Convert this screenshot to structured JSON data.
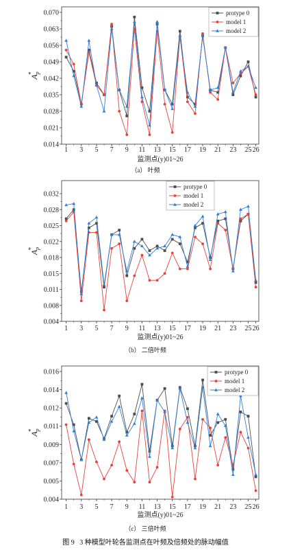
{
  "figure_caption": "图 9   3 种模型叶轮各监测点在叶频及倍频处的脉动幅值",
  "chart_data": [
    {
      "type": "line",
      "caption": "（a） 叶频",
      "xlabel": "监测点(y)01~26",
      "ylabel": {
        "base": "A",
        "sub": "p",
        "sup": "*"
      },
      "x": [
        1,
        2,
        3,
        4,
        5,
        6,
        7,
        8,
        9,
        10,
        11,
        12,
        13,
        14,
        15,
        16,
        17,
        18,
        19,
        20,
        21,
        22,
        23,
        24,
        25,
        26
      ],
      "xticks": [
        1,
        3,
        5,
        7,
        9,
        11,
        13,
        15,
        17,
        19,
        21,
        23,
        25,
        26
      ],
      "xlim": [
        0.4,
        26.4
      ],
      "ylim": [
        0.014,
        0.07
      ],
      "yticks": [
        "0.014",
        "0.021",
        "0.028",
        "0.035",
        "0.042",
        "0.049",
        "0.056",
        "0.063",
        "0.070"
      ],
      "grid": false,
      "legend": "top-right",
      "series": [
        {
          "name": "protype 0",
          "color": "#4d4d4d",
          "values": [
            0.051,
            0.045,
            0.031,
            0.054,
            0.04,
            0.035,
            0.064,
            0.037,
            0.026,
            0.068,
            0.038,
            0.028,
            0.065,
            0.037,
            0.031,
            0.062,
            0.034,
            0.031,
            0.06,
            0.037,
            0.036,
            0.055,
            0.035,
            0.043,
            0.049,
            0.034
          ]
        },
        {
          "name": "model 1",
          "color": "#e8413c",
          "values": [
            0.054,
            0.048,
            0.031,
            0.053,
            0.039,
            0.035,
            0.065,
            0.028,
            0.018,
            0.063,
            0.032,
            0.018,
            0.062,
            0.031,
            0.019,
            0.06,
            0.032,
            0.027,
            0.061,
            0.036,
            0.033,
            0.055,
            0.04,
            0.044,
            0.047,
            0.035
          ]
        },
        {
          "name": "model 2",
          "color": "#2f7fd8",
          "values": [
            0.058,
            0.043,
            0.03,
            0.058,
            0.039,
            0.028,
            0.063,
            0.037,
            0.03,
            0.066,
            0.034,
            0.022,
            0.066,
            0.037,
            0.029,
            0.06,
            0.036,
            0.03,
            0.06,
            0.037,
            0.038,
            0.055,
            0.036,
            0.045,
            0.047,
            0.038
          ]
        }
      ]
    },
    {
      "type": "line",
      "caption": "（b） 二倍叶频",
      "xlabel": "监测点(y)01~26",
      "ylabel": {
        "base": "A",
        "sub": "p",
        "sup": "*"
      },
      "x": [
        1,
        2,
        3,
        4,
        5,
        6,
        7,
        8,
        9,
        10,
        11,
        12,
        13,
        14,
        15,
        16,
        17,
        18,
        19,
        20,
        21,
        22,
        23,
        24,
        25,
        26
      ],
      "xticks": [
        1,
        3,
        5,
        7,
        9,
        11,
        13,
        15,
        17,
        19,
        21,
        23,
        25,
        26
      ],
      "xlim": [
        0.4,
        26.4
      ],
      "ylim": [
        0.004,
        0.032
      ],
      "yticks": [
        "0.004",
        "0.008",
        "0.011",
        "0.015",
        "0.018",
        "0.022",
        "0.025",
        "0.028",
        "0.032"
      ],
      "grid": false,
      "legend": "top-center",
      "series": [
        {
          "name": "protype 0",
          "color": "#4d4d4d",
          "values": [
            0.0265,
            0.0285,
            0.0105,
            0.0245,
            0.0255,
            0.0115,
            0.023,
            0.024,
            0.014,
            0.02,
            0.022,
            0.0195,
            0.0205,
            0.0195,
            0.022,
            0.021,
            0.017,
            0.0245,
            0.0255,
            0.018,
            0.026,
            0.0265,
            0.0155,
            0.026,
            0.0275,
            0.0125
          ]
        },
        {
          "name": "model 1",
          "color": "#e8413c",
          "values": [
            0.026,
            0.028,
            0.0085,
            0.0235,
            0.0235,
            0.0065,
            0.02,
            0.021,
            0.0085,
            0.014,
            0.0185,
            0.013,
            0.013,
            0.0145,
            0.019,
            0.0155,
            0.0155,
            0.0225,
            0.021,
            0.0155,
            0.0255,
            0.024,
            0.0155,
            0.0265,
            0.0275,
            0.0115
          ]
        },
        {
          "name": "model 2",
          "color": "#2f7fd8",
          "values": [
            0.0295,
            0.0298,
            0.01,
            0.0255,
            0.0268,
            0.012,
            0.023,
            0.023,
            0.015,
            0.0215,
            0.0205,
            0.0185,
            0.02,
            0.0205,
            0.023,
            0.0225,
            0.016,
            0.025,
            0.027,
            0.0175,
            0.0275,
            0.028,
            0.015,
            0.0285,
            0.0292,
            0.013
          ]
        }
      ]
    },
    {
      "type": "line",
      "caption": "（c） 三倍叶频",
      "xlabel": "监测点(y)01~26",
      "ylabel": {
        "base": "A",
        "sub": "p",
        "sup": "*"
      },
      "x": [
        1,
        2,
        3,
        4,
        5,
        6,
        7,
        8,
        9,
        10,
        11,
        12,
        13,
        14,
        15,
        16,
        17,
        18,
        19,
        20,
        21,
        22,
        23,
        24,
        25,
        26
      ],
      "xticks": [
        1,
        3,
        5,
        7,
        9,
        11,
        13,
        15,
        17,
        19,
        21,
        23,
        25,
        26
      ],
      "xlim": [
        0.4,
        26.4
      ],
      "ylim": [
        0.004,
        0.016
      ],
      "yticks": [
        "0.004",
        "0.005",
        "0.007",
        "0.009",
        "0.011",
        "0.012",
        "0.014",
        "0.016"
      ],
      "grid": false,
      "legend": "top-right",
      "series": [
        {
          "name": "protype 0",
          "color": "#4d4d4d",
          "values": [
            0.013,
            0.011,
            0.0077,
            0.0116,
            0.0113,
            0.0097,
            0.0118,
            0.0137,
            0.0103,
            0.012,
            0.0148,
            0.0085,
            0.0133,
            0.0144,
            0.009,
            0.0145,
            0.0125,
            0.009,
            0.0152,
            0.01,
            0.0112,
            0.0115,
            0.0068,
            0.0122,
            0.0118,
            0.0061
          ]
        },
        {
          "name": "model 1",
          "color": "#e8413c",
          "values": [
            0.011,
            0.0073,
            0.0044,
            0.0096,
            0.0075,
            0.0059,
            0.0072,
            0.0094,
            0.0067,
            0.0056,
            0.0123,
            0.0056,
            0.007,
            0.0123,
            0.0042,
            0.0106,
            0.0117,
            0.0059,
            0.0115,
            0.0107,
            0.0072,
            0.0098,
            0.0072,
            0.0103,
            0.0088,
            0.0048
          ]
        },
        {
          "name": "model 2",
          "color": "#2f7fd8",
          "values": [
            0.014,
            0.0104,
            0.0077,
            0.0112,
            0.0117,
            0.0096,
            0.0113,
            0.0127,
            0.01,
            0.0111,
            0.0135,
            0.008,
            0.0133,
            0.0122,
            0.0088,
            0.0144,
            0.0112,
            0.0088,
            0.0145,
            0.009,
            0.012,
            0.0109,
            0.0063,
            0.0137,
            0.0098,
            0.0063
          ]
        }
      ]
    }
  ]
}
